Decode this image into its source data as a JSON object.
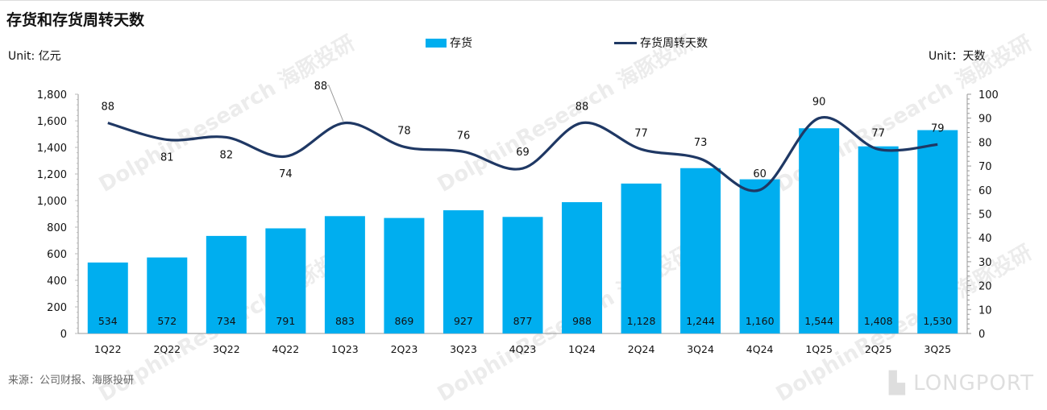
{
  "title": "存货和存货周转天数",
  "source": "来源：公司财报、海豚投研",
  "watermark": "DolphinResearch 海豚投研",
  "logo": "LONGPORT",
  "chart_data": {
    "type": "bar+line",
    "title": "存货和存货周转天数",
    "left_unit": "Unit: 亿元",
    "right_unit": "Unit：天数",
    "categories": [
      "1Q22",
      "2Q22",
      "3Q22",
      "4Q22",
      "1Q23",
      "2Q23",
      "3Q23",
      "4Q23",
      "1Q24",
      "2Q24",
      "3Q24",
      "4Q24",
      "1Q25",
      "2Q25",
      "3Q25"
    ],
    "series": [
      {
        "name": "存货",
        "type": "bar",
        "axis": "left",
        "color": "#00AEEF",
        "values": [
          534,
          572,
          734,
          791,
          883,
          869,
          927,
          877,
          988,
          1128,
          1244,
          1160,
          1544,
          1408,
          1530
        ],
        "labels": [
          "534",
          "572",
          "734",
          "791",
          "883",
          "869",
          "927",
          "877",
          "988",
          "1,128",
          "1,244",
          "1,160",
          "1,544",
          "1,408",
          "1,530"
        ]
      },
      {
        "name": "存货周转天数",
        "type": "line",
        "axis": "right",
        "color": "#1F3864",
        "values": [
          88,
          81,
          82,
          74,
          88,
          78,
          76,
          69,
          88,
          77,
          73,
          60,
          90,
          77,
          79
        ]
      }
    ],
    "left_axis": {
      "range": [
        0,
        1800
      ],
      "ticks": [
        "0",
        "200",
        "400",
        "600",
        "800",
        "1,000",
        "1,200",
        "1,400",
        "1,600",
        "1,800"
      ]
    },
    "right_axis": {
      "range": [
        0,
        100
      ],
      "ticks": [
        "0",
        "10",
        "20",
        "30",
        "40",
        "50",
        "60",
        "70",
        "80",
        "90",
        "100"
      ]
    },
    "legend": "top-center",
    "grid": false
  }
}
